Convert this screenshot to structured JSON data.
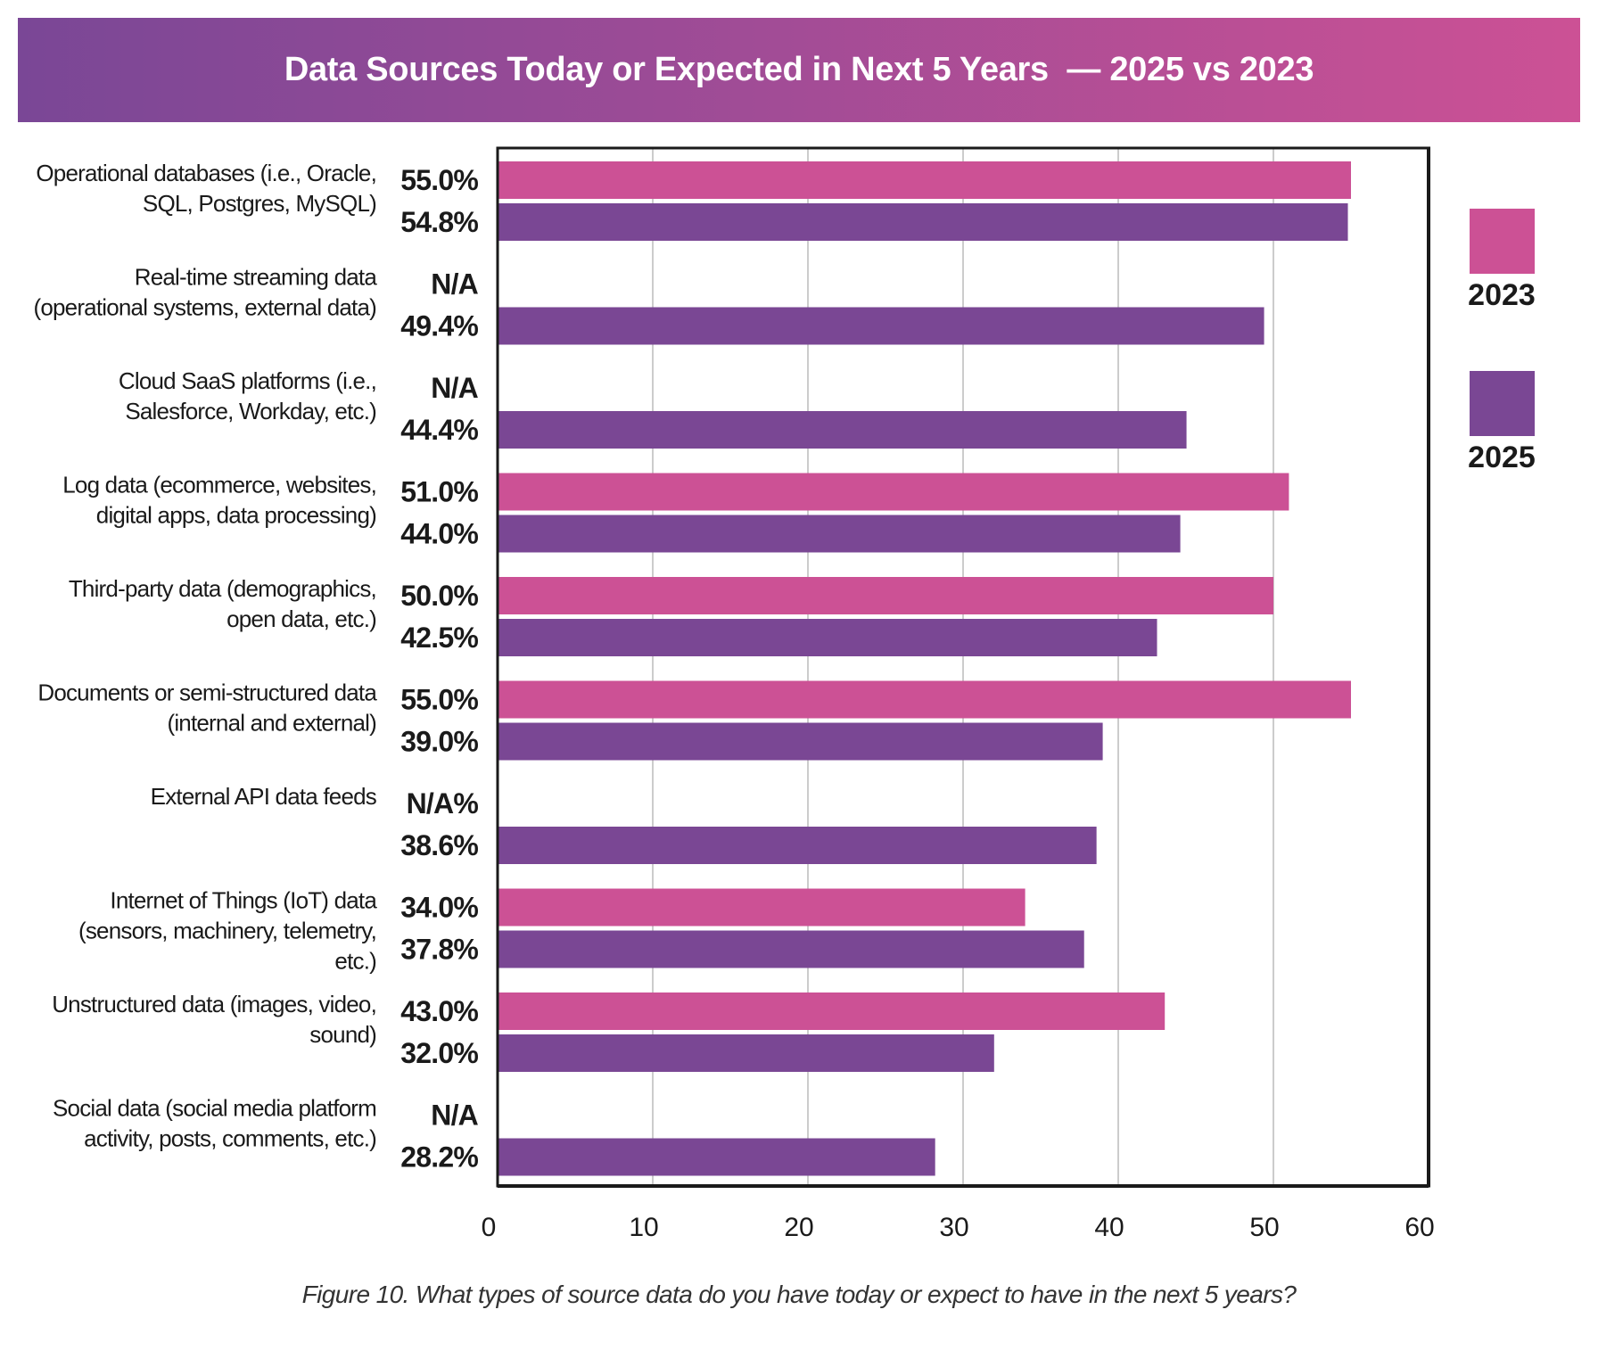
{
  "header": {
    "title": "Data Sources Today or Expected in Next 5 Years  — 2025 vs 2023",
    "gradient_start": "#7a4796",
    "gradient_end": "#cc5195"
  },
  "caption": "Figure 10. What types of source data do you have today or expect to have in the next 5 years?",
  "colors": {
    "2023": "#cc5195",
    "2025": "#7a4794",
    "gridline": "#cccccc",
    "axis": "#1a1a1a"
  },
  "chart_data": {
    "type": "bar",
    "orientation": "horizontal",
    "title": "Data Sources Today or Expected in Next 5 Years — 2025 vs 2023",
    "xlabel": "",
    "ylabel": "",
    "xlim": [
      0,
      60
    ],
    "xticks": [
      0,
      10,
      20,
      30,
      40,
      50,
      60
    ],
    "grid": true,
    "legend_position": "right",
    "categories": [
      [
        "Operational databases (i.e., Oracle,",
        "SQL, Postgres, MySQL)"
      ],
      [
        "Real-time streaming data",
        "(operational systems, external data)"
      ],
      [
        "Cloud SaaS platforms (i.e.,",
        "Salesforce, Workday, etc.)"
      ],
      [
        "Log data (ecommerce, websites,",
        "digital apps, data processing)"
      ],
      [
        "Third-party data (demographics,",
        "open data, etc.)"
      ],
      [
        "Documents or semi-structured data",
        "(internal and external)"
      ],
      [
        "External API data feeds"
      ],
      [
        "Internet of Things (IoT) data",
        "(sensors, machinery, telemetry,",
        "etc.)"
      ],
      [
        "Unstructured data (images, video,",
        "sound)"
      ],
      [
        "Social data (social media platform",
        "activity, posts, comments, etc.)"
      ]
    ],
    "series": [
      {
        "name": "2023",
        "values": [
          55.0,
          null,
          null,
          51.0,
          50.0,
          55.0,
          null,
          34.0,
          43.0,
          null
        ],
        "labels": [
          "55.0%",
          "N/A",
          "N/A",
          "51.0%",
          "50.0%",
          "55.0%",
          "N/A%",
          "34.0%",
          "43.0%",
          "N/A"
        ]
      },
      {
        "name": "2025",
        "values": [
          54.8,
          49.4,
          44.4,
          44.0,
          42.5,
          39.0,
          38.6,
          37.8,
          32.0,
          28.2
        ],
        "labels": [
          "54.8%",
          "49.4%",
          "44.4%",
          "44.0%",
          "42.5%",
          "39.0%",
          "38.6%",
          "37.8%",
          "32.0%",
          "28.2%"
        ]
      }
    ],
    "legend": [
      "2023",
      "2025"
    ]
  }
}
